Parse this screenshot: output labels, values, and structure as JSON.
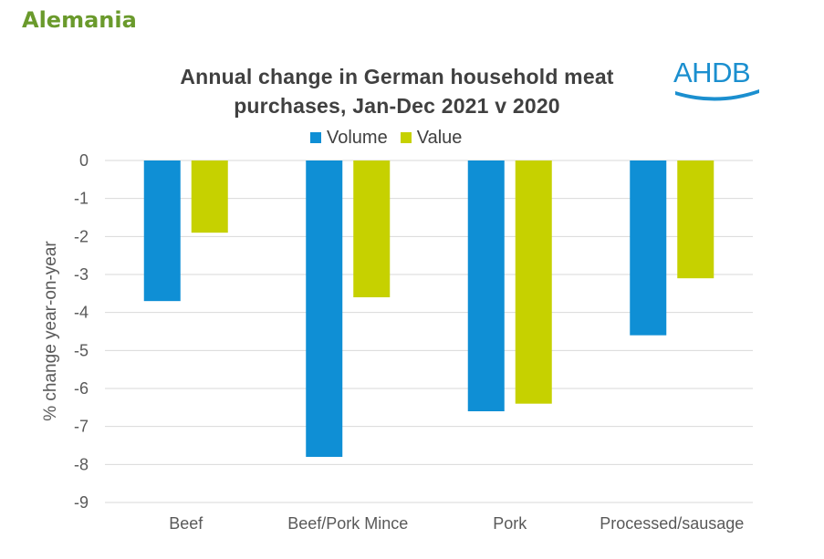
{
  "page": {
    "heading": "Alemania"
  },
  "logo": {
    "text": "AHDB",
    "color": "#1b8fcf"
  },
  "chart_data": {
    "type": "bar",
    "title_line1": "Annual change in German household meat",
    "title_line2": "purchases,  Jan-Dec 2021 v 2020",
    "ylabel": "% change year-on-year",
    "xlabel": "",
    "categories": [
      "Beef",
      "Beef/Pork Mince",
      "Pork",
      "Processed/sausage"
    ],
    "series": [
      {
        "name": "Volume",
        "color": "#0f8fd5",
        "values": [
          -3.7,
          -7.8,
          -6.6,
          -4.6
        ]
      },
      {
        "name": "Value",
        "color": "#c6d100",
        "values": [
          -1.9,
          -3.6,
          -6.4,
          -3.1
        ]
      }
    ],
    "ylim": [
      -9,
      0
    ],
    "yticks": [
      0,
      -1,
      -2,
      -3,
      -4,
      -5,
      -6,
      -7,
      -8,
      -9
    ],
    "grid": true,
    "legend_position": "top"
  }
}
